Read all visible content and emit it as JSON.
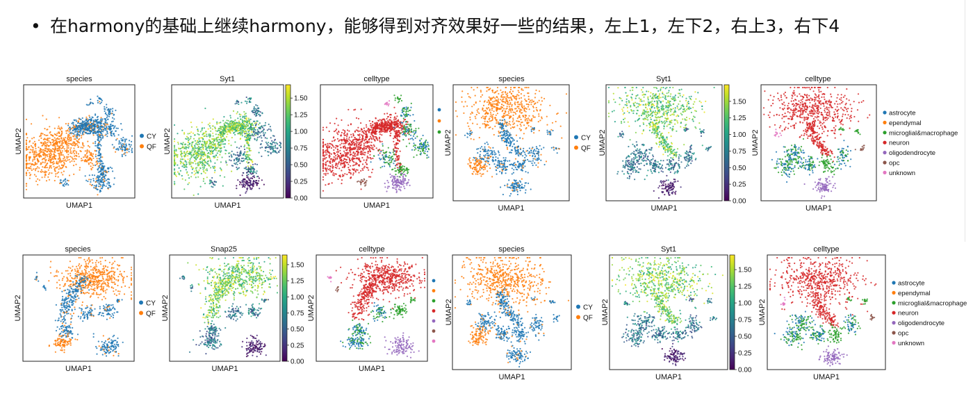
{
  "slide": {
    "bullet": "•",
    "text": "在harmony的基础上继续harmony，能够得到对齐效果好一些的结果，左上1，左下2，右上3，右下4"
  },
  "colors": {
    "CY": "#1f77b4",
    "QF": "#ff7f0e",
    "astrocyte": "#1f77b4",
    "ependymal": "#ff7f0e",
    "microglial&macrophage": "#2ca02c",
    "neuron": "#d62728",
    "oligodendrocyte": "#9467bd",
    "opc": "#8c564b",
    "unknown": "#e377c2"
  },
  "chart_data": [
    {
      "type": "scatter",
      "title": "species",
      "xlabel": "UMAP1",
      "ylabel": "UMAP2",
      "legend": [
        "CY",
        "QF"
      ],
      "legend_placement": "right"
    },
    {
      "type": "scatter",
      "title": "Syt1",
      "xlabel": "UMAP1",
      "ylabel": "UMAP2",
      "colorbar": {
        "range": [
          0.0,
          1.7
        ],
        "ticks": [
          "0.00",
          "0.25",
          "0.50",
          "0.75",
          "1.00",
          "1.25",
          "1.50"
        ]
      }
    },
    {
      "type": "scatter",
      "title": "celltype",
      "xlabel": "UMAP1",
      "ylabel": "",
      "legend_placement": "right (clipped)"
    },
    {
      "type": "scatter",
      "title": "species",
      "xlabel": "UMAP1",
      "ylabel": "UMAP2",
      "legend": [
        "CY",
        "QF"
      ],
      "legend_placement": "right"
    },
    {
      "type": "scatter",
      "title": "Syt1",
      "xlabel": "UMAP1",
      "ylabel": "UMAP2",
      "colorbar": {
        "range": [
          0.0,
          1.75
        ],
        "ticks": [
          "0.00",
          "0.25",
          "0.50",
          "0.75",
          "1.00",
          "1.25",
          "1.50"
        ]
      }
    },
    {
      "type": "scatter",
      "title": "celltype",
      "xlabel": "UMAP1",
      "ylabel": "UMAP2",
      "legend": [
        "astrocyte",
        "ependymal",
        "microglial&macrophage",
        "neuron",
        "oligodendrocyte",
        "opc",
        "unknown"
      ],
      "legend_placement": "right"
    },
    {
      "type": "scatter",
      "title": "species",
      "xlabel": "UMAP1",
      "ylabel": "UMAP2",
      "legend": [
        "CY",
        "QF"
      ],
      "legend_placement": "right"
    },
    {
      "type": "scatter",
      "title": "Snap25",
      "xlabel": "UMAP1",
      "ylabel": "UMAP2",
      "colorbar": {
        "range": [
          0.0,
          1.65
        ],
        "ticks": [
          "0.00",
          "0.25",
          "0.50",
          "0.75",
          "1.00",
          "1.25",
          "1.50"
        ]
      }
    },
    {
      "type": "scatter",
      "title": "celltype",
      "xlabel": "UMAP1",
      "ylabel": "UMAP2",
      "legend_placement": "right (clipped)"
    },
    {
      "type": "scatter",
      "title": "species",
      "xlabel": "UMAP1",
      "ylabel": "UMAP2",
      "legend": [
        "CY",
        "QF"
      ],
      "legend_placement": "right"
    },
    {
      "type": "scatter",
      "title": "Syt1",
      "xlabel": "UMAP1",
      "ylabel": "UMAP2",
      "colorbar": {
        "range": [
          0.0,
          1.72
        ],
        "ticks": [
          "0.00",
          "0.25",
          "0.50",
          "0.75",
          "1.00",
          "1.25",
          "1.50"
        ]
      }
    },
    {
      "type": "scatter",
      "title": "celltype",
      "xlabel": "UMAP1",
      "ylabel": "UMAP2",
      "legend": [
        "astrocyte",
        "ependymal",
        "microglial&macrophage",
        "neuron",
        "oligodendrocyte",
        "opc",
        "unknown"
      ],
      "legend_placement": "right"
    }
  ]
}
